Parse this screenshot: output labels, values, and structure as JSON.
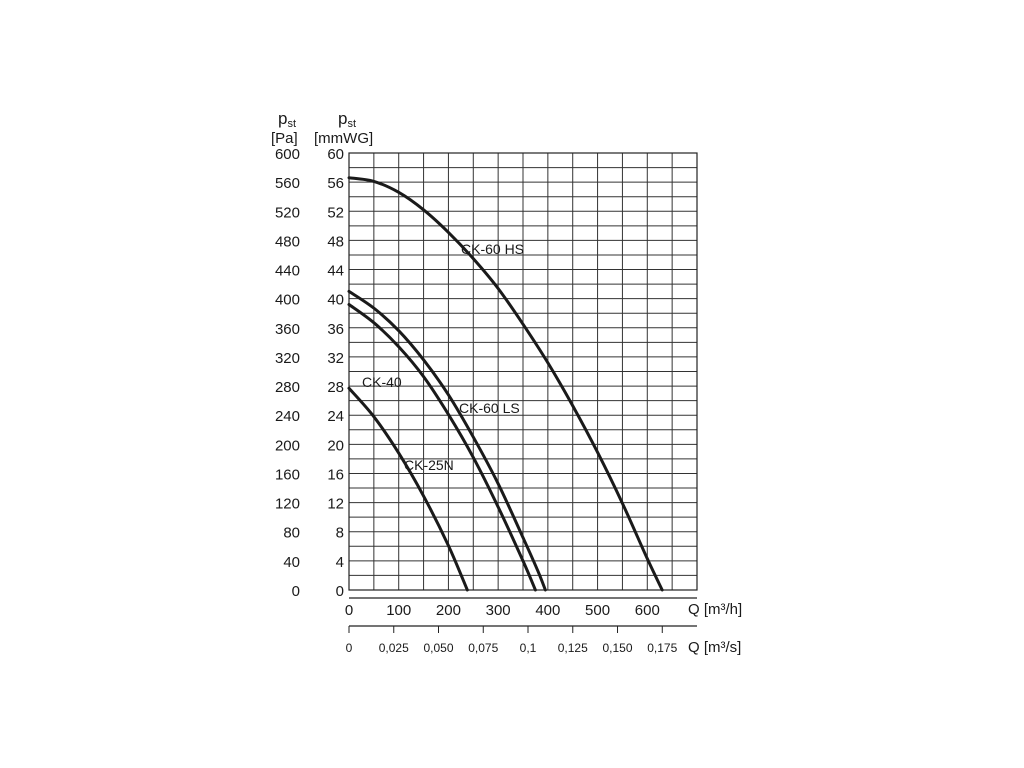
{
  "chart_data": {
    "type": "line",
    "y_axes": [
      {
        "symbol": "p",
        "subscript": "st",
        "unit": "[Pa]",
        "ticks": [
          "600",
          "560",
          "520",
          "480",
          "440",
          "400",
          "360",
          "320",
          "280",
          "240",
          "200",
          "160",
          "120",
          "80",
          "40",
          "0"
        ],
        "range": [
          0,
          600
        ]
      },
      {
        "symbol": "p",
        "subscript": "st",
        "unit": "[mmWG]",
        "ticks": [
          "60",
          "56",
          "52",
          "48",
          "44",
          "40",
          "36",
          "32",
          "28",
          "24",
          "20",
          "16",
          "12",
          "8",
          "4",
          "0"
        ],
        "range": [
          0,
          60
        ]
      }
    ],
    "x_axes": [
      {
        "label": "Q [m³/h]",
        "ticks": [
          "0",
          "100",
          "200",
          "300",
          "400",
          "500",
          "600"
        ],
        "range": [
          0,
          700
        ]
      },
      {
        "label": "Q [m³/s]",
        "ticks": [
          "0",
          "0,025",
          "0,050",
          "0,075",
          "0,1",
          "0,125",
          "0,150",
          "0,175"
        ],
        "range": [
          0,
          0.1944
        ]
      }
    ],
    "grid": true,
    "series": [
      {
        "name": "CK-60 HS",
        "x": [
          0,
          50,
          100,
          150,
          200,
          250,
          300,
          350,
          400,
          450,
          500,
          550,
          600,
          630
        ],
        "y": [
          56.6,
          56.1,
          54.6,
          52.2,
          49.1,
          45.5,
          41.4,
          36.5,
          31.2,
          25.3,
          18.9,
          11.9,
          4.3,
          0
        ]
      },
      {
        "name": "CK-60 LS",
        "x": [
          0,
          50,
          100,
          150,
          200,
          250,
          300,
          350,
          380,
          395
        ],
        "y": [
          41.0,
          38.7,
          35.6,
          31.6,
          26.8,
          21.0,
          14.6,
          7.2,
          2.6,
          0
        ]
      },
      {
        "name": "CK-40",
        "x": [
          0,
          50,
          100,
          150,
          200,
          250,
          300,
          350,
          375
        ],
        "y": [
          39.2,
          36.7,
          33.4,
          29.3,
          24.1,
          18.2,
          11.4,
          4.0,
          0
        ]
      },
      {
        "name": "CK-25N",
        "x": [
          0,
          50,
          100,
          150,
          200,
          238
        ],
        "y": [
          27.7,
          23.8,
          18.8,
          12.9,
          6.1,
          0
        ]
      }
    ]
  }
}
